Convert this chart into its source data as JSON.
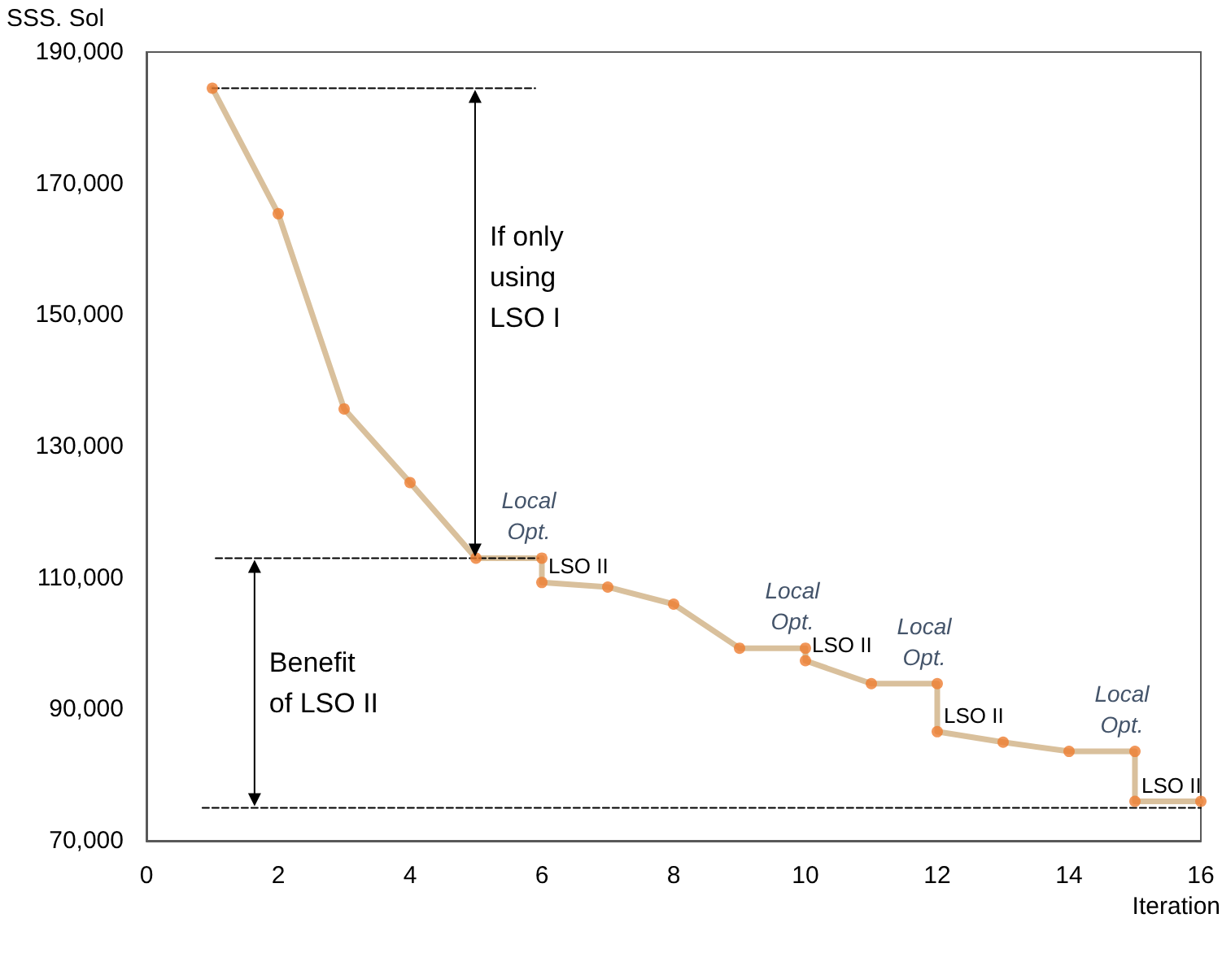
{
  "chart_data": {
    "type": "line",
    "ylabel": "SSS. Sol",
    "xlabel": "Iteration",
    "xlim": [
      0,
      16
    ],
    "xticks": [
      0,
      2,
      4,
      6,
      8,
      10,
      12,
      14,
      16
    ],
    "ylim": [
      70000,
      190000
    ],
    "yticks": [
      {
        "value": 70000,
        "label": "70,000"
      },
      {
        "value": 90000,
        "label": "90,000"
      },
      {
        "value": 110000,
        "label": "110,000"
      },
      {
        "value": 130000,
        "label": "130,000"
      },
      {
        "value": 150000,
        "label": "150,000"
      },
      {
        "value": 170000,
        "label": "170,000"
      },
      {
        "value": 190000,
        "label": "190,000"
      }
    ],
    "grid": false,
    "series": [
      {
        "type": "line",
        "color": "#d9c09c",
        "marker": "none",
        "x": [
          1,
          2,
          3,
          4,
          5,
          6,
          6,
          7,
          8,
          9,
          10,
          10,
          11,
          12,
          12,
          13,
          14,
          15,
          15,
          16
        ],
        "values": [
          184500,
          165400,
          135700,
          124500,
          113000,
          113000,
          109300,
          108600,
          106000,
          99300,
          99300,
          97400,
          93900,
          93900,
          86600,
          85000,
          83600,
          83600,
          76000,
          76000
        ]
      },
      {
        "type": "scatter",
        "color": "#ed7d31",
        "marker": "circle",
        "x": [
          1,
          2,
          3,
          4,
          5,
          6,
          6,
          7,
          8,
          9,
          10,
          10,
          11,
          12,
          12,
          13,
          14,
          15,
          15,
          16
        ],
        "values": [
          184500,
          165400,
          135700,
          124500,
          113000,
          113000,
          109300,
          108600,
          106000,
          99300,
          99300,
          97400,
          93900,
          93900,
          86600,
          85000,
          83600,
          83600,
          76000,
          76000
        ]
      },
      {
        "type": "line",
        "color": "#000000",
        "marker": "none",
        "line_style": "dashed",
        "x": [
          1,
          5.9
        ],
        "values": [
          184500,
          184500
        ]
      },
      {
        "type": "line",
        "color": "#000000",
        "marker": "none",
        "line_style": "dashed",
        "x": [
          1.05,
          5.95
        ],
        "values": [
          113000,
          113000
        ]
      },
      {
        "type": "line",
        "color": "#000000",
        "marker": "none",
        "line_style": "dashed",
        "x": [
          0.85,
          16
        ],
        "values": [
          75000,
          75000
        ]
      }
    ],
    "annotations": [
      "If only\nusing\nLSO I",
      "Benefit\nof LSO II",
      {
        "text": "Local\nOpt.",
        "x": 6,
        "y": 113000
      },
      {
        "text": "LSO II",
        "x": 6,
        "y": 109300
      },
      {
        "text": "Local\nOpt.",
        "x": 10,
        "y": 99300
      },
      {
        "text": "LSO II",
        "x": 10,
        "y": 97400
      },
      {
        "text": "Local\nOpt.",
        "x": 12,
        "y": 93900
      },
      {
        "text": "LSO II",
        "x": 12,
        "y": 86600
      },
      {
        "text": "Local\nOpt.",
        "x": 15,
        "y": 83600
      },
      {
        "text": "LSO II",
        "x": 15,
        "y": 76000
      }
    ]
  }
}
